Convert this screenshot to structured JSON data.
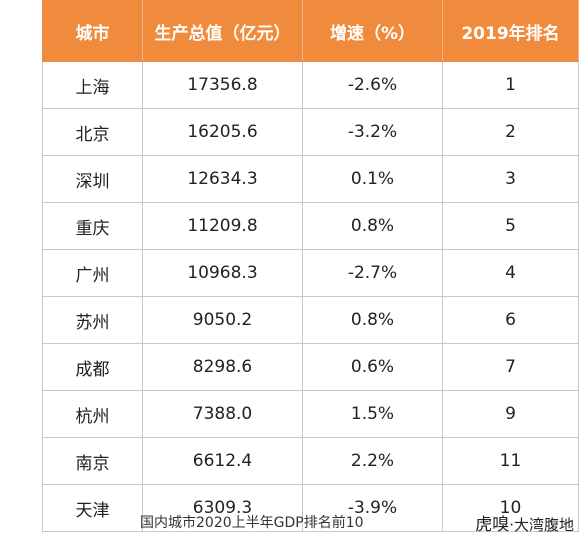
{
  "table": {
    "header": [
      "城市",
      "生产总值（亿元）",
      "增速（%）",
      "2019年排名"
    ],
    "rows": [
      [
        "上海",
        "17356.8",
        "-2.6%",
        "1"
      ],
      [
        "北京",
        "16205.6",
        "-3.2%",
        "2"
      ],
      [
        "深圳",
        "12634.3",
        "0.1%",
        "3"
      ],
      [
        "重庆",
        "11209.8",
        "0.8%",
        "5"
      ],
      [
        "广州",
        "10968.3",
        "-2.7%",
        "4"
      ],
      [
        "苏州",
        "9050.2",
        "0.8%",
        "6"
      ],
      [
        "成都",
        "8298.6",
        "0.6%",
        "7"
      ],
      [
        "杭州",
        "7388.0",
        "1.5%",
        "9"
      ],
      [
        "南京",
        "6612.4",
        "2.2%",
        "11"
      ],
      [
        "天津",
        "6309.3",
        "-3.9%",
        "10"
      ]
    ]
  },
  "caption": "国内城市2020上半年GDP排名前10",
  "brand": {
    "logo": "虎嗅",
    "name": "·大湾腹地"
  }
}
